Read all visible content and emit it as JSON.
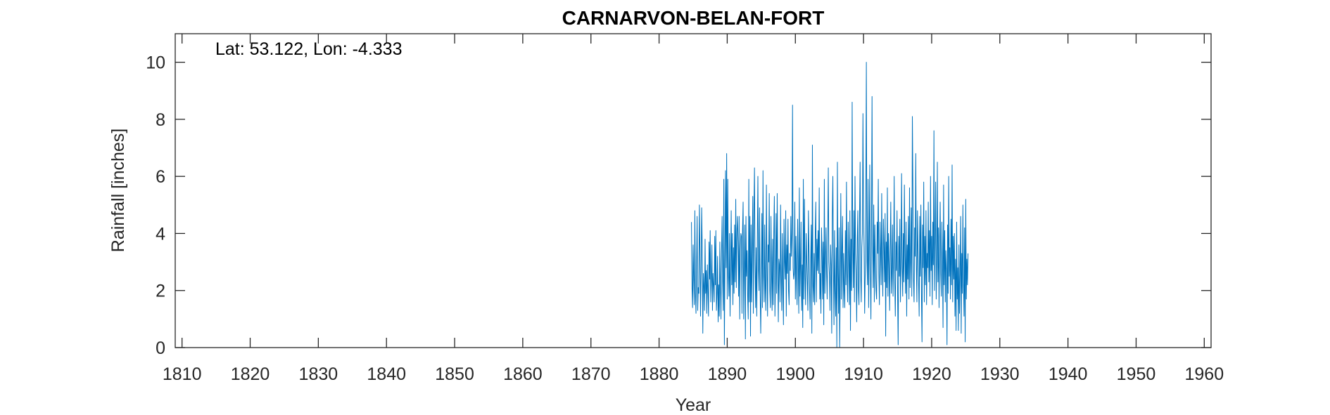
{
  "chart_data": {
    "type": "line",
    "title": "CARNARVON-BELAN-FORT",
    "annotation": "Lat: 53.122, Lon: -4.333",
    "xlabel": "Year",
    "ylabel": "Rainfall [inches]",
    "xlim": [
      1809,
      1961
    ],
    "ylim": [
      0,
      11
    ],
    "xticks": [
      1810,
      1820,
      1830,
      1840,
      1850,
      1860,
      1870,
      1880,
      1890,
      1900,
      1910,
      1920,
      1930,
      1940,
      1950,
      1960
    ],
    "yticks": [
      0,
      2,
      4,
      6,
      8,
      10
    ],
    "grid": false,
    "line_color": "#0072BD",
    "series": [
      {
        "x_start": 1884.75,
        "x_step": 0.0833333,
        "values": [
          4.4,
          2.1,
          1.4,
          3.6,
          2.4,
          1.5,
          4.8,
          1.9,
          1.2,
          2.8,
          4.6,
          1.3,
          2.1,
          1.9,
          5.0,
          3.4,
          1.1,
          2.7,
          4.9,
          3.5,
          0.5,
          2.6,
          2.2,
          1.3,
          3.8,
          1.9,
          2.7,
          1.2,
          2.9,
          2.0,
          1.1,
          3.7,
          2.4,
          4.1,
          1.6,
          2.4,
          3.6,
          1.3,
          2.6,
          2.2,
          1.6,
          3.9,
          2.2,
          4.1,
          1.3,
          1.9,
          3.2,
          0.9,
          2.2,
          1.1,
          3.7,
          2.1,
          1.0,
          3.3,
          4.6,
          2.3,
          1.3,
          5.9,
          0.1,
          3.0,
          6.2,
          2.8,
          6.8,
          1.7,
          5.9,
          2.5,
          1.8,
          4.0,
          1.1,
          3.0,
          4.8,
          2.2,
          4.0,
          1.5,
          3.5,
          1.9,
          4.3,
          2.3,
          5.2,
          2.1,
          4.0,
          4.6,
          3.7,
          1.8,
          4.6,
          1.0,
          3.4,
          4.0,
          3.9,
          1.2,
          4.1,
          5.1,
          1.0,
          2.8,
          4.3,
          0.3,
          4.6,
          2.5,
          3.4,
          1.8,
          1.0,
          5.9,
          1.6,
          4.6,
          0.4,
          4.3,
          1.6,
          3.3,
          5.3,
          1.2,
          4.8,
          6.3,
          2.9,
          1.4,
          3.5,
          1.1,
          3.7,
          6.0,
          2.7,
          2.0,
          4.9,
          1.9,
          0.5,
          2.3,
          4.7,
          1.4,
          6.2,
          2.6,
          1.6,
          4.3,
          2.1,
          1.3,
          5.7,
          2.9,
          1.1,
          3.6,
          3.0,
          5.4,
          2.0,
          1.4,
          4.6,
          2.7,
          1.3,
          3.8,
          1.5,
          4.0,
          5.3,
          1.1,
          2.3,
          4.7,
          1.9,
          5.4,
          2.8,
          0.9,
          3.1,
          2.9,
          1.6,
          5.0,
          2.5,
          1.3,
          4.0,
          2.2,
          0.8,
          4.5,
          3.0,
          2.4,
          4.8,
          1.1,
          3.6,
          2.6,
          4.5,
          2.0,
          1.5,
          3.3,
          2.7,
          4.6,
          3.2,
          4.0,
          8.5,
          2.8,
          2.4,
          2.6,
          5.1,
          1.7,
          3.9,
          2.4,
          1.5,
          4.5,
          2.9,
          1.2,
          5.6,
          1.8,
          2.9,
          4.4,
          1.3,
          2.9,
          0.7,
          5.9,
          1.7,
          5.2,
          2.5,
          1.5,
          4.0,
          3.1,
          2.3,
          1.3,
          4.8,
          3.4,
          2.0,
          1.0,
          3.1,
          4.3,
          0.5,
          7.1,
          2.2,
          1.6,
          3.3,
          1.5,
          4.0,
          5.1,
          1.6,
          3.8,
          2.7,
          4.1,
          2.6,
          5.6,
          1.7,
          2.6,
          1.2,
          4.2,
          3.4,
          1.7,
          3.7,
          0.8,
          5.9,
          1.9,
          3.0,
          4.2,
          2.6,
          1.7,
          4.0,
          6.3,
          3.0,
          2.5,
          1.3,
          3.6,
          2.9,
          0.5,
          4.6,
          6.0,
          2.8,
          0.8,
          4.1,
          2.0,
          1.1,
          3.5,
          0.0,
          6.5,
          2.6,
          1.2,
          4.2,
          0.0,
          2.2,
          5.4,
          1.7,
          3.4,
          4.6,
          1.4,
          3.3,
          2.0,
          1.4,
          4.1,
          2.2,
          5.8,
          2.6,
          1.6,
          4.4,
          3.2,
          1.5,
          4.8,
          0.6,
          3.8,
          2.0,
          8.6,
          3.5,
          2.1,
          4.8,
          1.6,
          6.0,
          3.3,
          2.6,
          0.9,
          3.7,
          4.8,
          2.0,
          1.5,
          4.5,
          6.5,
          2.5,
          1.6,
          3.5,
          4.0,
          8.2,
          4.6,
          3.5,
          1.2,
          2.6,
          4.9,
          10.0,
          3.0,
          2.2,
          5.9,
          1.4,
          3.4,
          6.4,
          2.8,
          1.0,
          4.0,
          8.8,
          3.6,
          2.1,
          5.0,
          1.6,
          4.3,
          3.0,
          2.0,
          1.7,
          4.4,
          3.3,
          5.9,
          2.6,
          1.5,
          4.4,
          3.4,
          2.2,
          5.4,
          2.9,
          1.8,
          4.5,
          3.6,
          2.3,
          4.7,
          0.4,
          3.7,
          2.1,
          5.6,
          1.8,
          4.0,
          2.9,
          1.3,
          3.4,
          5.1,
          1.9,
          2.6,
          4.3,
          1.8,
          3.0,
          6.0,
          2.3,
          1.1,
          3.7,
          2.7,
          4.8,
          1.9,
          0.1,
          3.9,
          2.5,
          4.5,
          1.6,
          3.0,
          6.1,
          2.8,
          1.8,
          4.0,
          2.3,
          5.7,
          3.2,
          1.9,
          4.4,
          1.1,
          3.6,
          2.4,
          4.6,
          1.7,
          5.6,
          2.1,
          3.0,
          4.9,
          1.8,
          8.1,
          5.6,
          2.4,
          1.6,
          4.2,
          3.2,
          6.8,
          2.9,
          1.6,
          4.8,
          3.4,
          2.3,
          1.1,
          4.6,
          2.5,
          5.0,
          1.9,
          0.2,
          4.3,
          2.8,
          5.8,
          1.6,
          3.9,
          2.2,
          4.8,
          1.5,
          3.3,
          2.8,
          5.1,
          2.3,
          4.1,
          1.8,
          6.0,
          2.7,
          3.9,
          1.5,
          4.4,
          2.9,
          7.6,
          2.0,
          3.8,
          5.8,
          1.7,
          3.0,
          6.5,
          2.3,
          4.2,
          1.4,
          3.5,
          5.1,
          2.6,
          1.8,
          4.4,
          3.1,
          0.7,
          5.7,
          2.2,
          4.1,
          1.6,
          3.4,
          2.7,
          0.1,
          4.3,
          1.9,
          6.0,
          2.5,
          3.5,
          1.7,
          4.5,
          2.2,
          6.4,
          1.6,
          3.9,
          2.4,
          4.0,
          1.1,
          3.1,
          0.6,
          4.4,
          1.7,
          2.8,
          0.6,
          3.6,
          1.2,
          2.6,
          4.6,
          0.5,
          3.3,
          1.9,
          5.0,
          2.3,
          1.1,
          4.2,
          0.2,
          5.2,
          1.7,
          3.1,
          2.2,
          3.3
        ]
      }
    ]
  }
}
